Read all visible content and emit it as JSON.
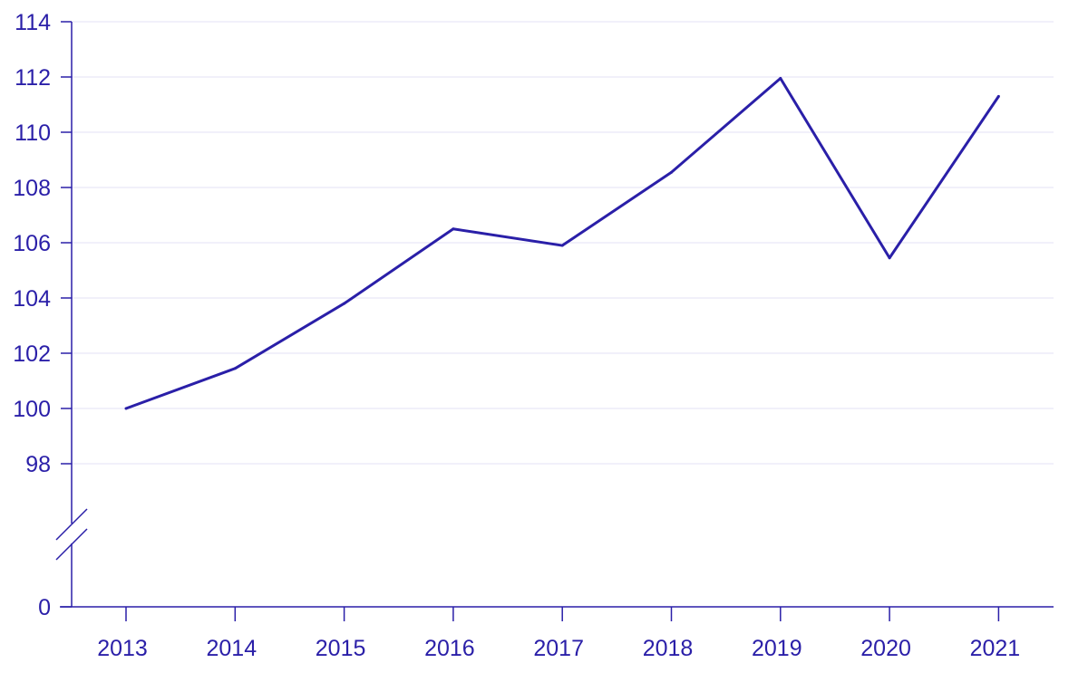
{
  "chart_data": {
    "type": "line",
    "x": [
      "2013",
      "2014",
      "2015",
      "2016",
      "2017",
      "2018",
      "2019",
      "2020",
      "2021"
    ],
    "series": [
      {
        "values": [
          100.0,
          101.45,
          103.8,
          106.5,
          105.9,
          108.55,
          111.95,
          105.45,
          111.3
        ]
      }
    ],
    "y_ticks": [
      98,
      100,
      102,
      104,
      106,
      108,
      110,
      112,
      114
    ],
    "y_break_tick": 0,
    "ylim": [
      96,
      114
    ],
    "axis_break": true,
    "grid": true,
    "legend": "none",
    "colors": {
      "line": "#2a1fa8",
      "axis": "#2a1fa8",
      "text": "#2a1fa8",
      "grid": "#e3e1f4"
    }
  }
}
